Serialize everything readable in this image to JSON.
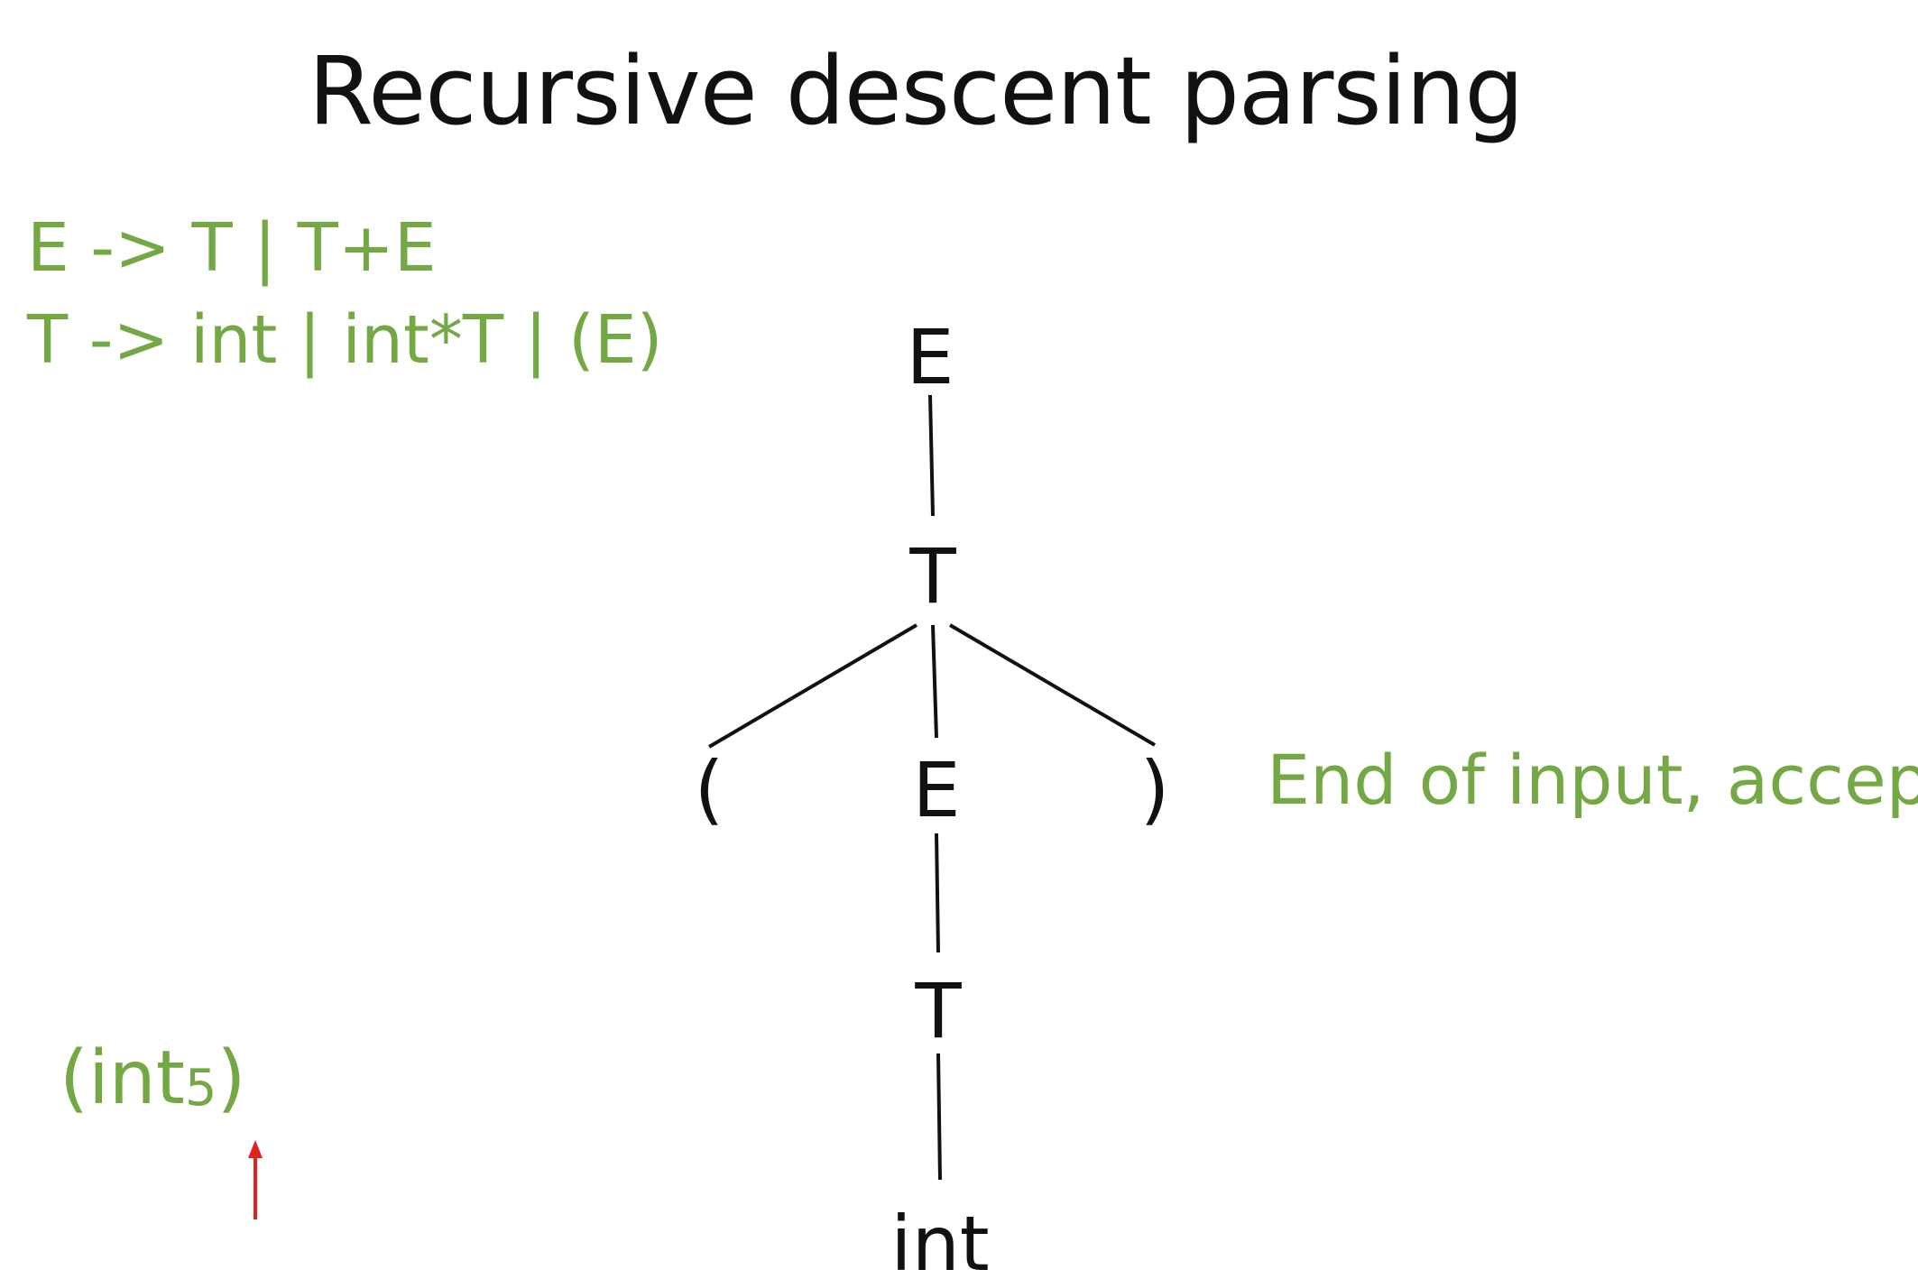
{
  "title": "Recursive descent parsing",
  "grammar": {
    "rule1": "E -> T | T+E",
    "rule2": "T -> int | int*T | (E)"
  },
  "input": {
    "open": "(",
    "token": "int",
    "subscript": "5",
    "close": ")"
  },
  "status_message": "End of input, accept.",
  "pointer_color": "#e0241b",
  "accent_color": "#74a844",
  "tree": {
    "root": "E",
    "t1": "T",
    "lparen": "(",
    "e2": "E",
    "rparen": ")",
    "t2": "T",
    "leaf": "int"
  }
}
